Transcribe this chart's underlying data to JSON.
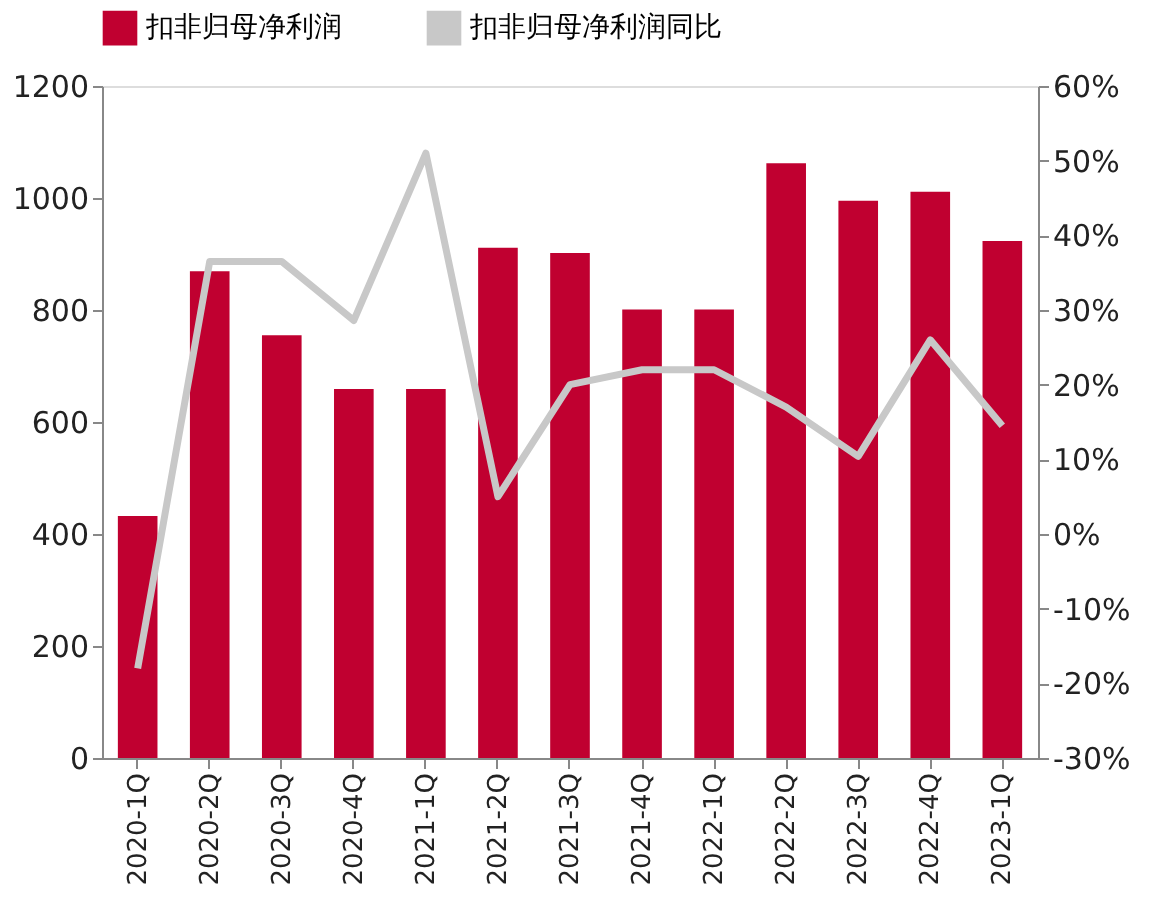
{
  "chart_data": {
    "type": "bar",
    "categories": [
      "2020-1Q",
      "2020-2Q",
      "2020-3Q",
      "2020-4Q",
      "2021-1Q",
      "2021-2Q",
      "2021-3Q",
      "2021-4Q",
      "2022-1Q",
      "2022-2Q",
      "2022-3Q",
      "2022-4Q",
      "2023-1Q"
    ],
    "series": [
      {
        "name": "扣非归母净利润",
        "color": "#c00030",
        "values": [
          432,
          869,
          755,
          659,
          659,
          911,
          902,
          801,
          801,
          1062,
          995,
          1011,
          923
        ]
      },
      {
        "name": "扣非归母净利润同比",
        "type": "line",
        "axis": "y2",
        "color": "#c8c8c8",
        "values": [
          -18,
          36.5,
          36.5,
          28.6,
          51,
          5,
          20,
          22,
          22,
          17,
          10.4,
          26,
          14.5
        ]
      }
    ],
    "ylim": [
      0,
      1200
    ],
    "yticks": [
      0,
      200,
      400,
      600,
      800,
      1000,
      1200
    ],
    "y2lim": [
      -30,
      60
    ],
    "y2ticks": [
      {
        "value": -30,
        "label": "-30%"
      },
      {
        "value": -20,
        "label": "-20%"
      },
      {
        "value": -10,
        "label": "-10%"
      },
      {
        "value": 0,
        "label": "0%"
      },
      {
        "value": 10,
        "label": "10%"
      },
      {
        "value": 20,
        "label": "20%"
      },
      {
        "value": 30,
        "label": "30%"
      },
      {
        "value": 40,
        "label": "40%"
      },
      {
        "value": 50,
        "label": "50%"
      },
      {
        "value": 60,
        "label": "60%"
      }
    ],
    "grid": false,
    "legend": "top",
    "line_style": "solid",
    "marker": "none"
  }
}
